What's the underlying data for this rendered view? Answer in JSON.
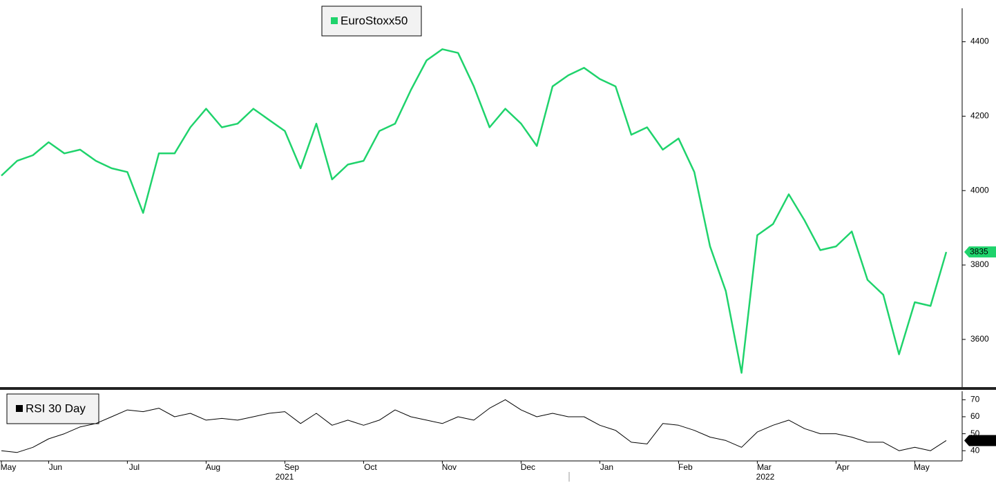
{
  "chart_data": [
    {
      "type": "line",
      "series": [
        {
          "name": "EuroStoxx50",
          "color": "#1fd36c",
          "values": [
            4040,
            4080,
            4095,
            4130,
            4100,
            4110,
            4080,
            4060,
            4050,
            3940,
            4100,
            4100,
            4170,
            4220,
            4170,
            4180,
            4220,
            4190,
            4160,
            4060,
            4180,
            4030,
            4070,
            4080,
            4160,
            4180,
            4270,
            4350,
            4380,
            4370,
            4280,
            4170,
            4220,
            4180,
            4120,
            4280,
            4310,
            4330,
            4300,
            4280,
            4150,
            4170,
            4110,
            4140,
            4050,
            3850,
            3730,
            3510,
            3880,
            3910,
            3990,
            3920,
            3840,
            3850,
            3890,
            3760,
            3720,
            3560,
            3700,
            3690,
            3835
          ]
        }
      ],
      "ylim": [
        3470,
        4490
      ],
      "yticks": [
        3600,
        3800,
        4000,
        4200,
        4400
      ]
    },
    {
      "type": "line",
      "categories": [
        "May",
        null,
        null,
        "Jun",
        null,
        null,
        null,
        null,
        "Jul",
        null,
        null,
        null,
        null,
        "Aug",
        null,
        null,
        null,
        null,
        "Sep",
        null,
        null,
        null,
        null,
        "Oct",
        null,
        null,
        null,
        null,
        "Nov",
        null,
        null,
        null,
        null,
        "Dec",
        null,
        null,
        null,
        null,
        "Jan",
        null,
        null,
        null,
        null,
        "Feb",
        null,
        null,
        null,
        null,
        "Mar",
        null,
        null,
        null,
        null,
        "Apr",
        null,
        null,
        null,
        null,
        "May",
        null,
        null
      ],
      "year_labels": [
        "2021",
        "2022"
      ],
      "series": [
        {
          "name": "RSI 30 Day",
          "color": "#000000",
          "values": [
            40,
            39,
            42,
            47,
            50,
            54,
            56,
            60,
            64,
            63,
            65,
            60,
            62,
            58,
            59,
            58,
            60,
            62,
            63,
            56,
            62,
            55,
            58,
            55,
            58,
            64,
            60,
            58,
            56,
            60,
            58,
            65,
            70,
            64,
            60,
            62,
            60,
            60,
            55,
            52,
            45,
            44,
            56,
            55,
            52,
            48,
            46,
            42,
            51,
            55,
            58,
            53,
            50,
            50,
            48,
            45,
            45,
            40,
            42,
            40,
            46
          ]
        }
      ],
      "ylim": [
        34,
        75
      ],
      "yticks": [
        40,
        50,
        60,
        70
      ]
    }
  ]
}
